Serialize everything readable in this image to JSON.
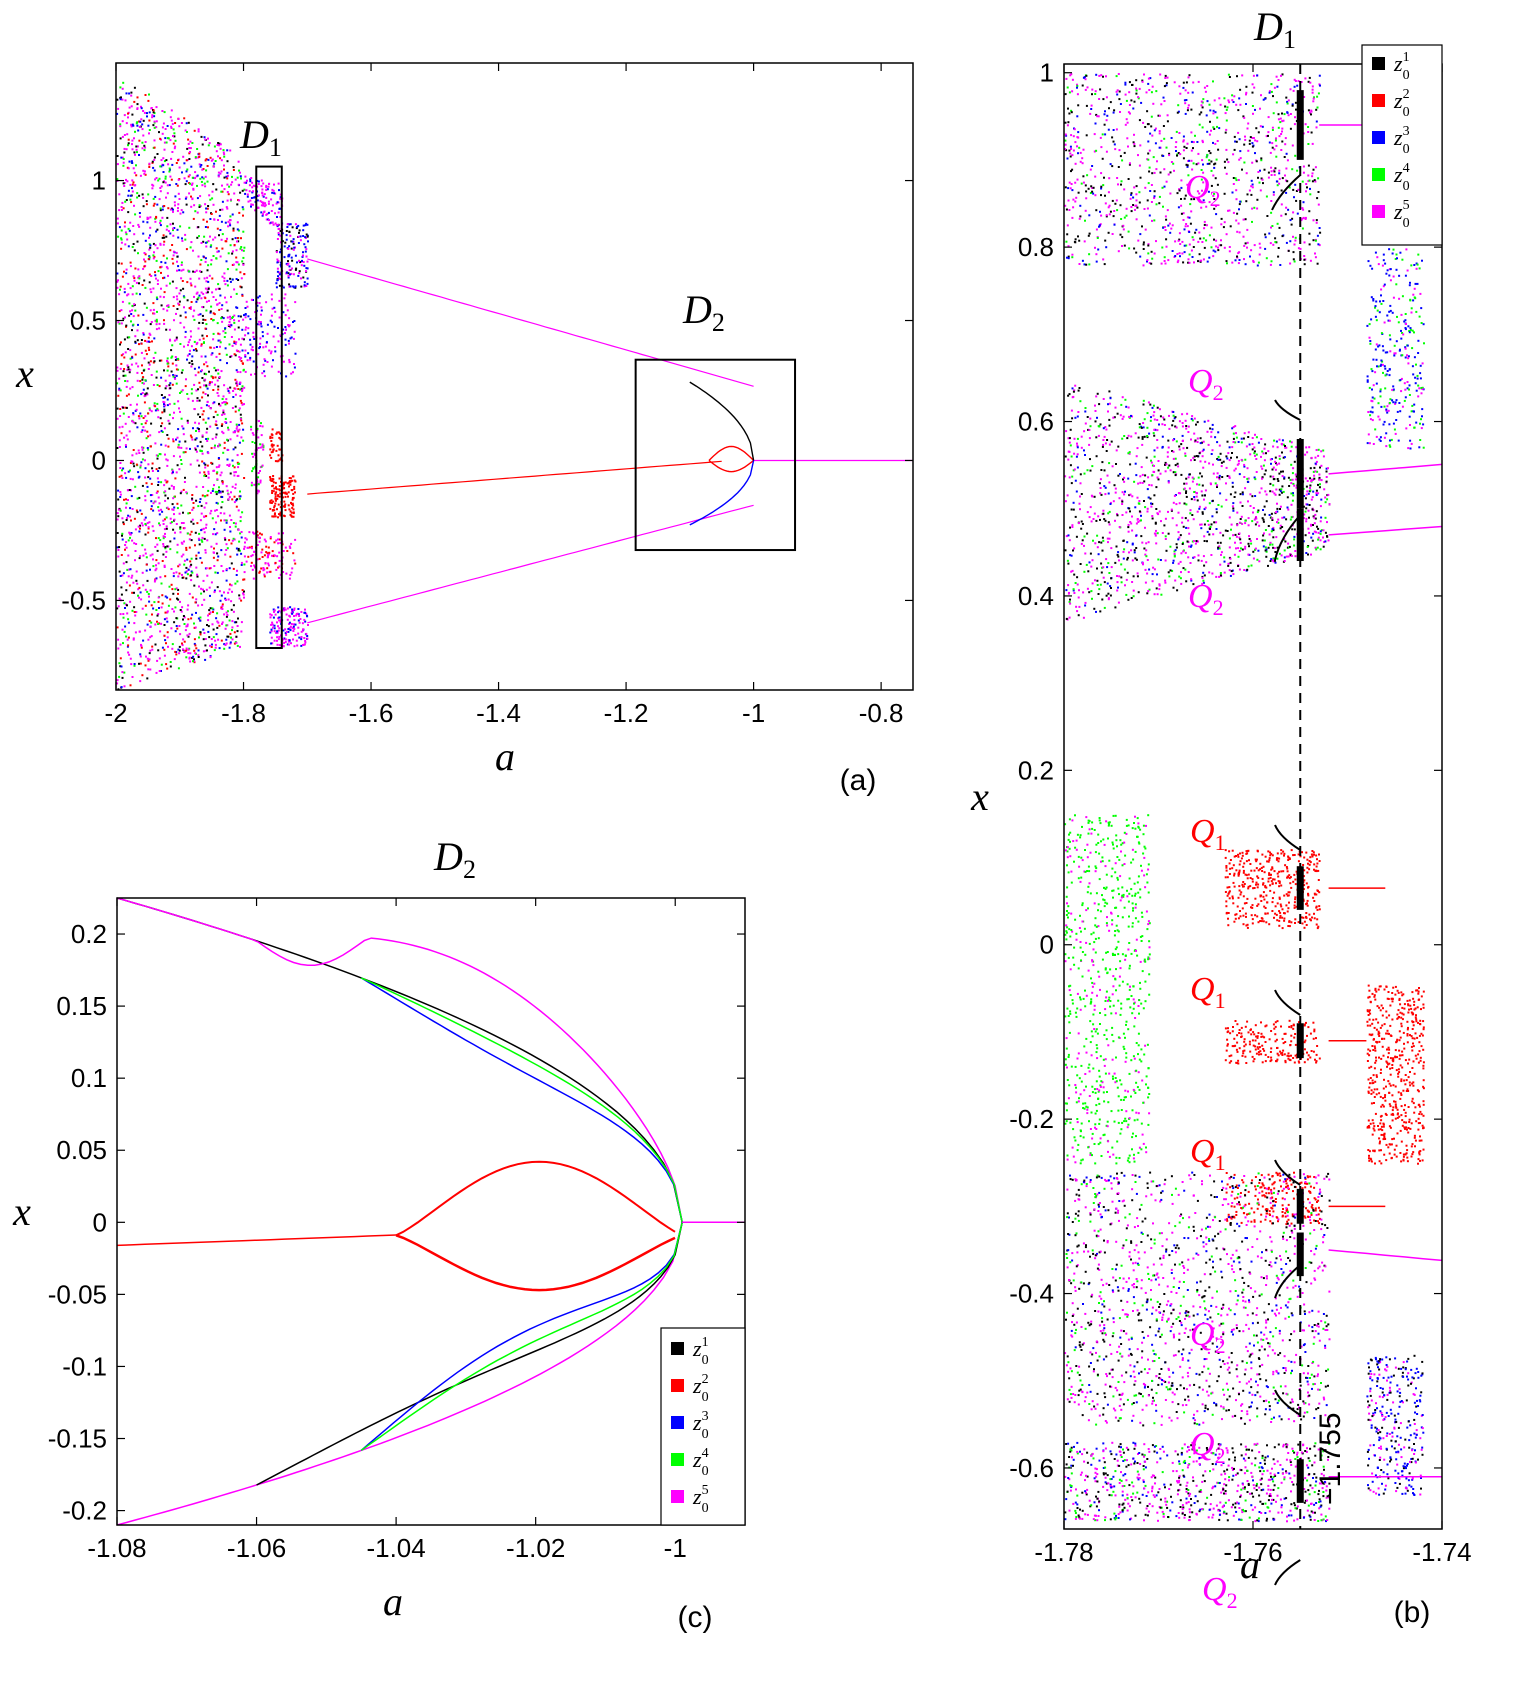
{
  "figure": {
    "panel_a_label": "(a)",
    "panel_b_label": "(b)",
    "panel_c_label": "(c)"
  },
  "colors": {
    "z1": "#000000",
    "z2": "#ff0000",
    "z3": "#0000ff",
    "z4": "#00ff00",
    "z5": "#ff00ff"
  },
  "chart_data": [
    {
      "id": "a",
      "type": "scatter",
      "title": "",
      "xlabel": "a",
      "ylabel": "x",
      "xlim": [
        -2,
        -0.75
      ],
      "ylim": [
        -0.82,
        1.42
      ],
      "xticks": [
        "-2",
        "-1.8",
        "-1.6",
        "-1.4",
        "-1.2",
        "-1",
        "-0.8"
      ],
      "xtick_values": [
        -2,
        -1.8,
        -1.6,
        -1.4,
        -1.2,
        -1,
        -0.8
      ],
      "yticks": [
        "-0.5",
        "0",
        "0.5",
        "1"
      ],
      "ytick_values": [
        -0.5,
        0,
        0.5,
        1
      ],
      "series_names": [
        "z0^1",
        "z0^2",
        "z0^3",
        "z0^4",
        "z0^5"
      ],
      "annotations": [
        {
          "label": "D",
          "sub": "1",
          "a_range": [
            -1.78,
            -1.74
          ],
          "x_range": [
            -0.67,
            1.05
          ]
        },
        {
          "label": "D",
          "sub": "2",
          "a_range": [
            -1.185,
            -0.935
          ],
          "x_range": [
            -0.32,
            0.36
          ]
        }
      ],
      "branches_description": "period-doubling bifurcation diagram of x versus a"
    },
    {
      "id": "b",
      "type": "scatter",
      "title": "D",
      "title_sub": "1",
      "xlabel": "a",
      "ylabel": "x",
      "xlim": [
        -1.78,
        -1.74
      ],
      "ylim": [
        -0.67,
        1.01
      ],
      "xticks": [
        "-1.78",
        "-1.76",
        "-1.74"
      ],
      "xtick_values": [
        -1.78,
        -1.76,
        -1.74
      ],
      "yticks": [
        "-0.6",
        "-0.4",
        "-0.2",
        "0",
        "0.2",
        "0.4",
        "0.6",
        "0.8",
        "1"
      ],
      "ytick_values": [
        -0.6,
        -0.4,
        -0.2,
        0,
        0.2,
        0.4,
        0.6,
        0.8,
        1
      ],
      "vline": {
        "a": -1.755,
        "label": "−1.755"
      },
      "legend": {
        "position": "top-right",
        "entries": [
          "z",
          "z",
          "z",
          "z",
          "z"
        ],
        "sups": [
          "1",
          "2",
          "3",
          "4",
          "5"
        ],
        "subs": [
          "0",
          "0",
          "0",
          "0",
          "0"
        ]
      },
      "q_labels": [
        {
          "text": "Q",
          "sub": "2",
          "color": "z5"
        },
        {
          "text": "Q",
          "sub": "2",
          "color": "z5"
        },
        {
          "text": "Q",
          "sub": "2",
          "color": "z5"
        },
        {
          "text": "Q",
          "sub": "1",
          "color": "z2"
        },
        {
          "text": "Q",
          "sub": "1",
          "color": "z2"
        },
        {
          "text": "Q",
          "sub": "1",
          "color": "z2"
        },
        {
          "text": "Q",
          "sub": "2",
          "color": "z5"
        },
        {
          "text": "Q",
          "sub": "2",
          "color": "z5"
        },
        {
          "text": "Q",
          "sub": "2",
          "color": "z5"
        }
      ]
    },
    {
      "id": "c",
      "type": "scatter",
      "title": "D",
      "title_sub": "2",
      "xlabel": "a",
      "ylabel": "x",
      "xlim": [
        -1.08,
        -0.99
      ],
      "ylim": [
        -0.21,
        0.225
      ],
      "xticks": [
        "-1.08",
        "-1.06",
        "-1.04",
        "-1.02",
        "-1"
      ],
      "xtick_values": [
        -1.08,
        -1.06,
        -1.04,
        -1.02,
        -1
      ],
      "yticks": [
        "-0.2",
        "-0.15",
        "-0.1",
        "-0.05",
        "0",
        "0.05",
        "0.1",
        "0.15",
        "0.2"
      ],
      "ytick_values": [
        -0.2,
        -0.15,
        -0.1,
        -0.05,
        0,
        0.05,
        0.1,
        0.15,
        0.2
      ],
      "legend": {
        "position": "bottom-right",
        "entries": [
          "z",
          "z",
          "z",
          "z",
          "z"
        ],
        "sups": [
          "1",
          "2",
          "3",
          "4",
          "5"
        ],
        "subs": [
          "0",
          "0",
          "0",
          "0",
          "0"
        ]
      }
    }
  ]
}
